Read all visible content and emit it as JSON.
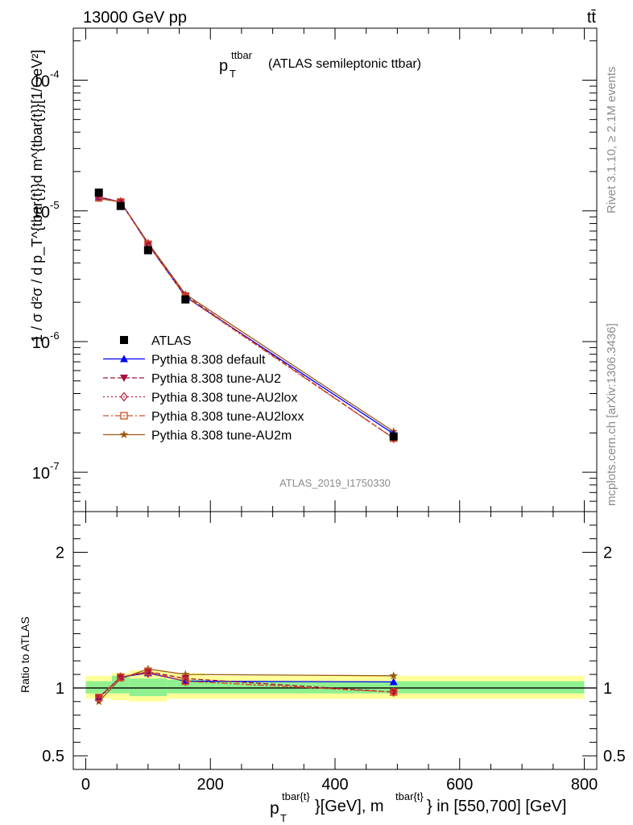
{
  "header": {
    "energy_label": "13000 GeV pp",
    "process_label": "tt̄",
    "rivet_label": "Rivet 3.1.10, ≥ 2.1M events",
    "mcplots_label": "mcplots.cern.ch [arXiv:1306.3436]",
    "analysis_label": "ATLAS_2019_I1750330"
  },
  "chart_data": [
    {
      "type": "line",
      "title_main": "p",
      "title_sup": "ttbar",
      "title_sub": "T",
      "title_rest": "(ATLAS semileptonic ttbar)",
      "ylabel": "1 / σ d²σ / d p_T^{tbar{t}}d m^{tbar{t}}[1/GeV²]",
      "yscale": "log",
      "ylim": [
        5e-08,
        0.00025
      ],
      "xlim": [
        -20,
        820
      ],
      "y_tick_labels": [
        "10^{-7}",
        "10^{-6}",
        "10^{-5}",
        "10^{-4}"
      ],
      "x": [
        21,
        56,
        100,
        160,
        494
      ],
      "series": [
        {
          "name": "ATLAS",
          "color": "#000000",
          "marker": "square",
          "values": [
            1.38e-05,
            1.09e-05,
            5e-06,
            2.1e-06,
            1.88e-07
          ]
        },
        {
          "name": "Pythia 8.308 default",
          "color": "#0000ff",
          "marker": "triangle-up",
          "dash": "solid",
          "values": [
            1.28e-05,
            1.17e-05,
            5.55e-06,
            2.2e-06,
            1.97e-07
          ]
        },
        {
          "name": "Pythia 8.308 tune-AU2",
          "color": "#a8103a",
          "marker": "triangle-down",
          "dash": "dashed",
          "values": [
            1.28e-05,
            1.17e-05,
            5.6e-06,
            2.25e-06,
            1.82e-07
          ]
        },
        {
          "name": "Pythia 8.308 tune-AU2lox",
          "color": "#c0203c",
          "marker": "diamond",
          "dash": "dotted",
          "values": [
            1.27e-05,
            1.17e-05,
            5.55e-06,
            2.2e-06,
            1.82e-07
          ]
        },
        {
          "name": "Pythia 8.308 tune-AU2loxx",
          "color": "#d05020",
          "marker": "square-open",
          "dash": "dashdot",
          "values": [
            1.26e-05,
            1.17e-05,
            5.55e-06,
            2.2e-06,
            1.82e-07
          ]
        },
        {
          "name": "Pythia 8.308 tune-AU2m",
          "color": "#9a5a10",
          "marker": "star",
          "dash": "solid",
          "values": [
            1.24e-05,
            1.17e-05,
            5.7e-06,
            2.3e-06,
            2.05e-07
          ]
        }
      ]
    },
    {
      "type": "line",
      "ylabel": "Ratio to ATLAS",
      "xlabel_main": "p",
      "xlabel_sup1": "tbar{t}",
      "xlabel_sub1": "T",
      "xlabel_mid": "}[GeV], m",
      "xlabel_sup2": "tbar{t}",
      "xlabel_end": "} in [550,700] [GeV]",
      "ylim": [
        0.4,
        2.3
      ],
      "xlim": [
        -20,
        820
      ],
      "y_tick_labels": [
        "0.5",
        "1",
        "2"
      ],
      "x_tick_labels": [
        "0",
        "200",
        "400",
        "600",
        "800"
      ],
      "bins": [
        [
          0,
          42
        ],
        [
          42,
          70
        ],
        [
          70,
          130
        ],
        [
          130,
          190
        ],
        [
          190,
          800
        ]
      ],
      "band_inner": [
        [
          0.96,
          1.05
        ],
        [
          0.96,
          1.09
        ],
        [
          0.94,
          1.07
        ],
        [
          0.96,
          1.06
        ],
        [
          0.96,
          1.05
        ]
      ],
      "band_outer": [
        [
          0.92,
          1.09
        ],
        [
          0.91,
          1.11
        ],
        [
          0.9,
          1.13
        ],
        [
          0.92,
          1.11
        ],
        [
          0.92,
          1.09
        ]
      ],
      "x": [
        21,
        56,
        100,
        160,
        494
      ],
      "series": [
        {
          "name": "Pythia 8.308 default",
          "values": [
            0.93,
            1.08,
            1.11,
            1.05,
            1.045
          ]
        },
        {
          "name": "Pythia 8.308 tune-AU2",
          "values": [
            0.93,
            1.08,
            1.12,
            1.07,
            0.97
          ]
        },
        {
          "name": "Pythia 8.308 tune-AU2lox",
          "values": [
            0.92,
            1.08,
            1.11,
            1.05,
            0.97
          ]
        },
        {
          "name": "Pythia 8.308 tune-AU2loxx",
          "values": [
            0.93,
            1.08,
            1.12,
            1.05,
            0.97
          ]
        },
        {
          "name": "Pythia 8.308 tune-AU2m",
          "values": [
            0.9,
            1.07,
            1.14,
            1.1,
            1.09
          ]
        }
      ]
    }
  ]
}
